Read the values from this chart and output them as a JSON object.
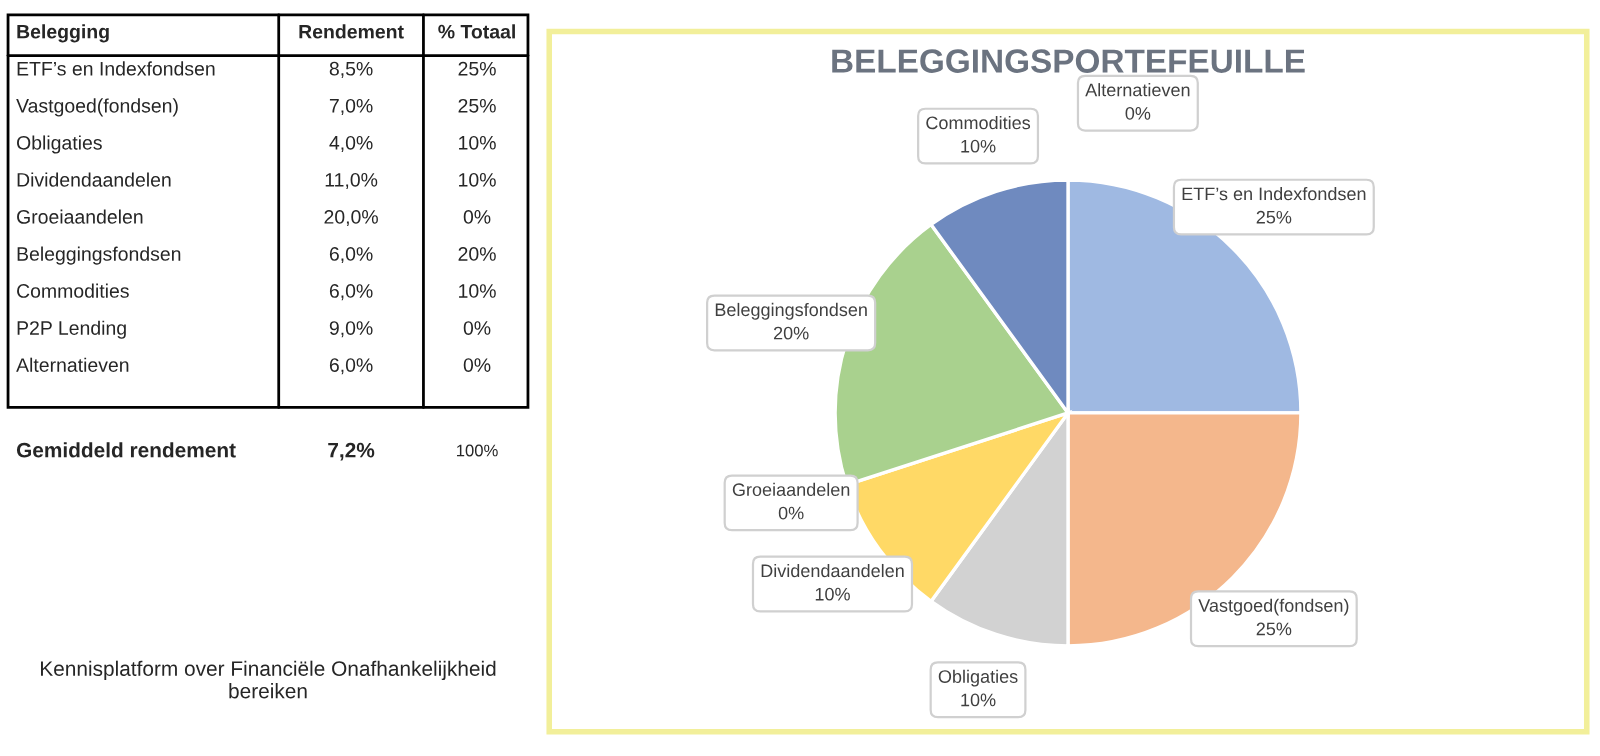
{
  "chart_data": [
    {
      "type": "other",
      "annotations": [
        "Belegging",
        "Rendement",
        "% Totaal",
        "ETF’s en Indexfondsen",
        "8,5%",
        "25%",
        "Vastgoed(fondsen)",
        "7,0%",
        "25%",
        "Obligaties",
        "4,0%",
        "10%",
        "Dividendaandelen",
        "11,0%",
        "10%",
        "Groeiaandelen",
        "20,0%",
        "0%",
        "Beleggingsfondsen",
        "6,0%",
        "20%",
        "Commodities",
        "6,0%",
        "10%",
        "P2P Lending",
        "9,0%",
        "0%",
        "Alternatieven",
        "6,0%",
        "0%",
        "Gemiddeld rendement",
        "7,2%",
        "100%",
        "Kennisplatform over Financiële Onafhankelijkheid bereiken"
      ]
    },
    {
      "type": "pie",
      "title": "BELEGGINGSPORTEFEUILLE",
      "categories": [
        "ETF’s en Indexfondsen",
        "Vastgoed(fondsen)",
        "Obligaties",
        "Dividendaandelen",
        "Groeiaandelen",
        "Beleggingsfondsen",
        "Commodities",
        "Alternatieven"
      ],
      "values": [
        25,
        25,
        10,
        10,
        0,
        20,
        10,
        0
      ],
      "colors": [
        "#9fb9e2",
        "#f4b78c",
        "#d2d2d2",
        "#ffd966",
        "#8fbc6f",
        "#a9d18e",
        "#6f8abf",
        "#7fa0c9"
      ],
      "value_labels": [
        "25%",
        "25%",
        "10%",
        "10%",
        "0%",
        "20%",
        "10%",
        "0%"
      ]
    }
  ]
}
